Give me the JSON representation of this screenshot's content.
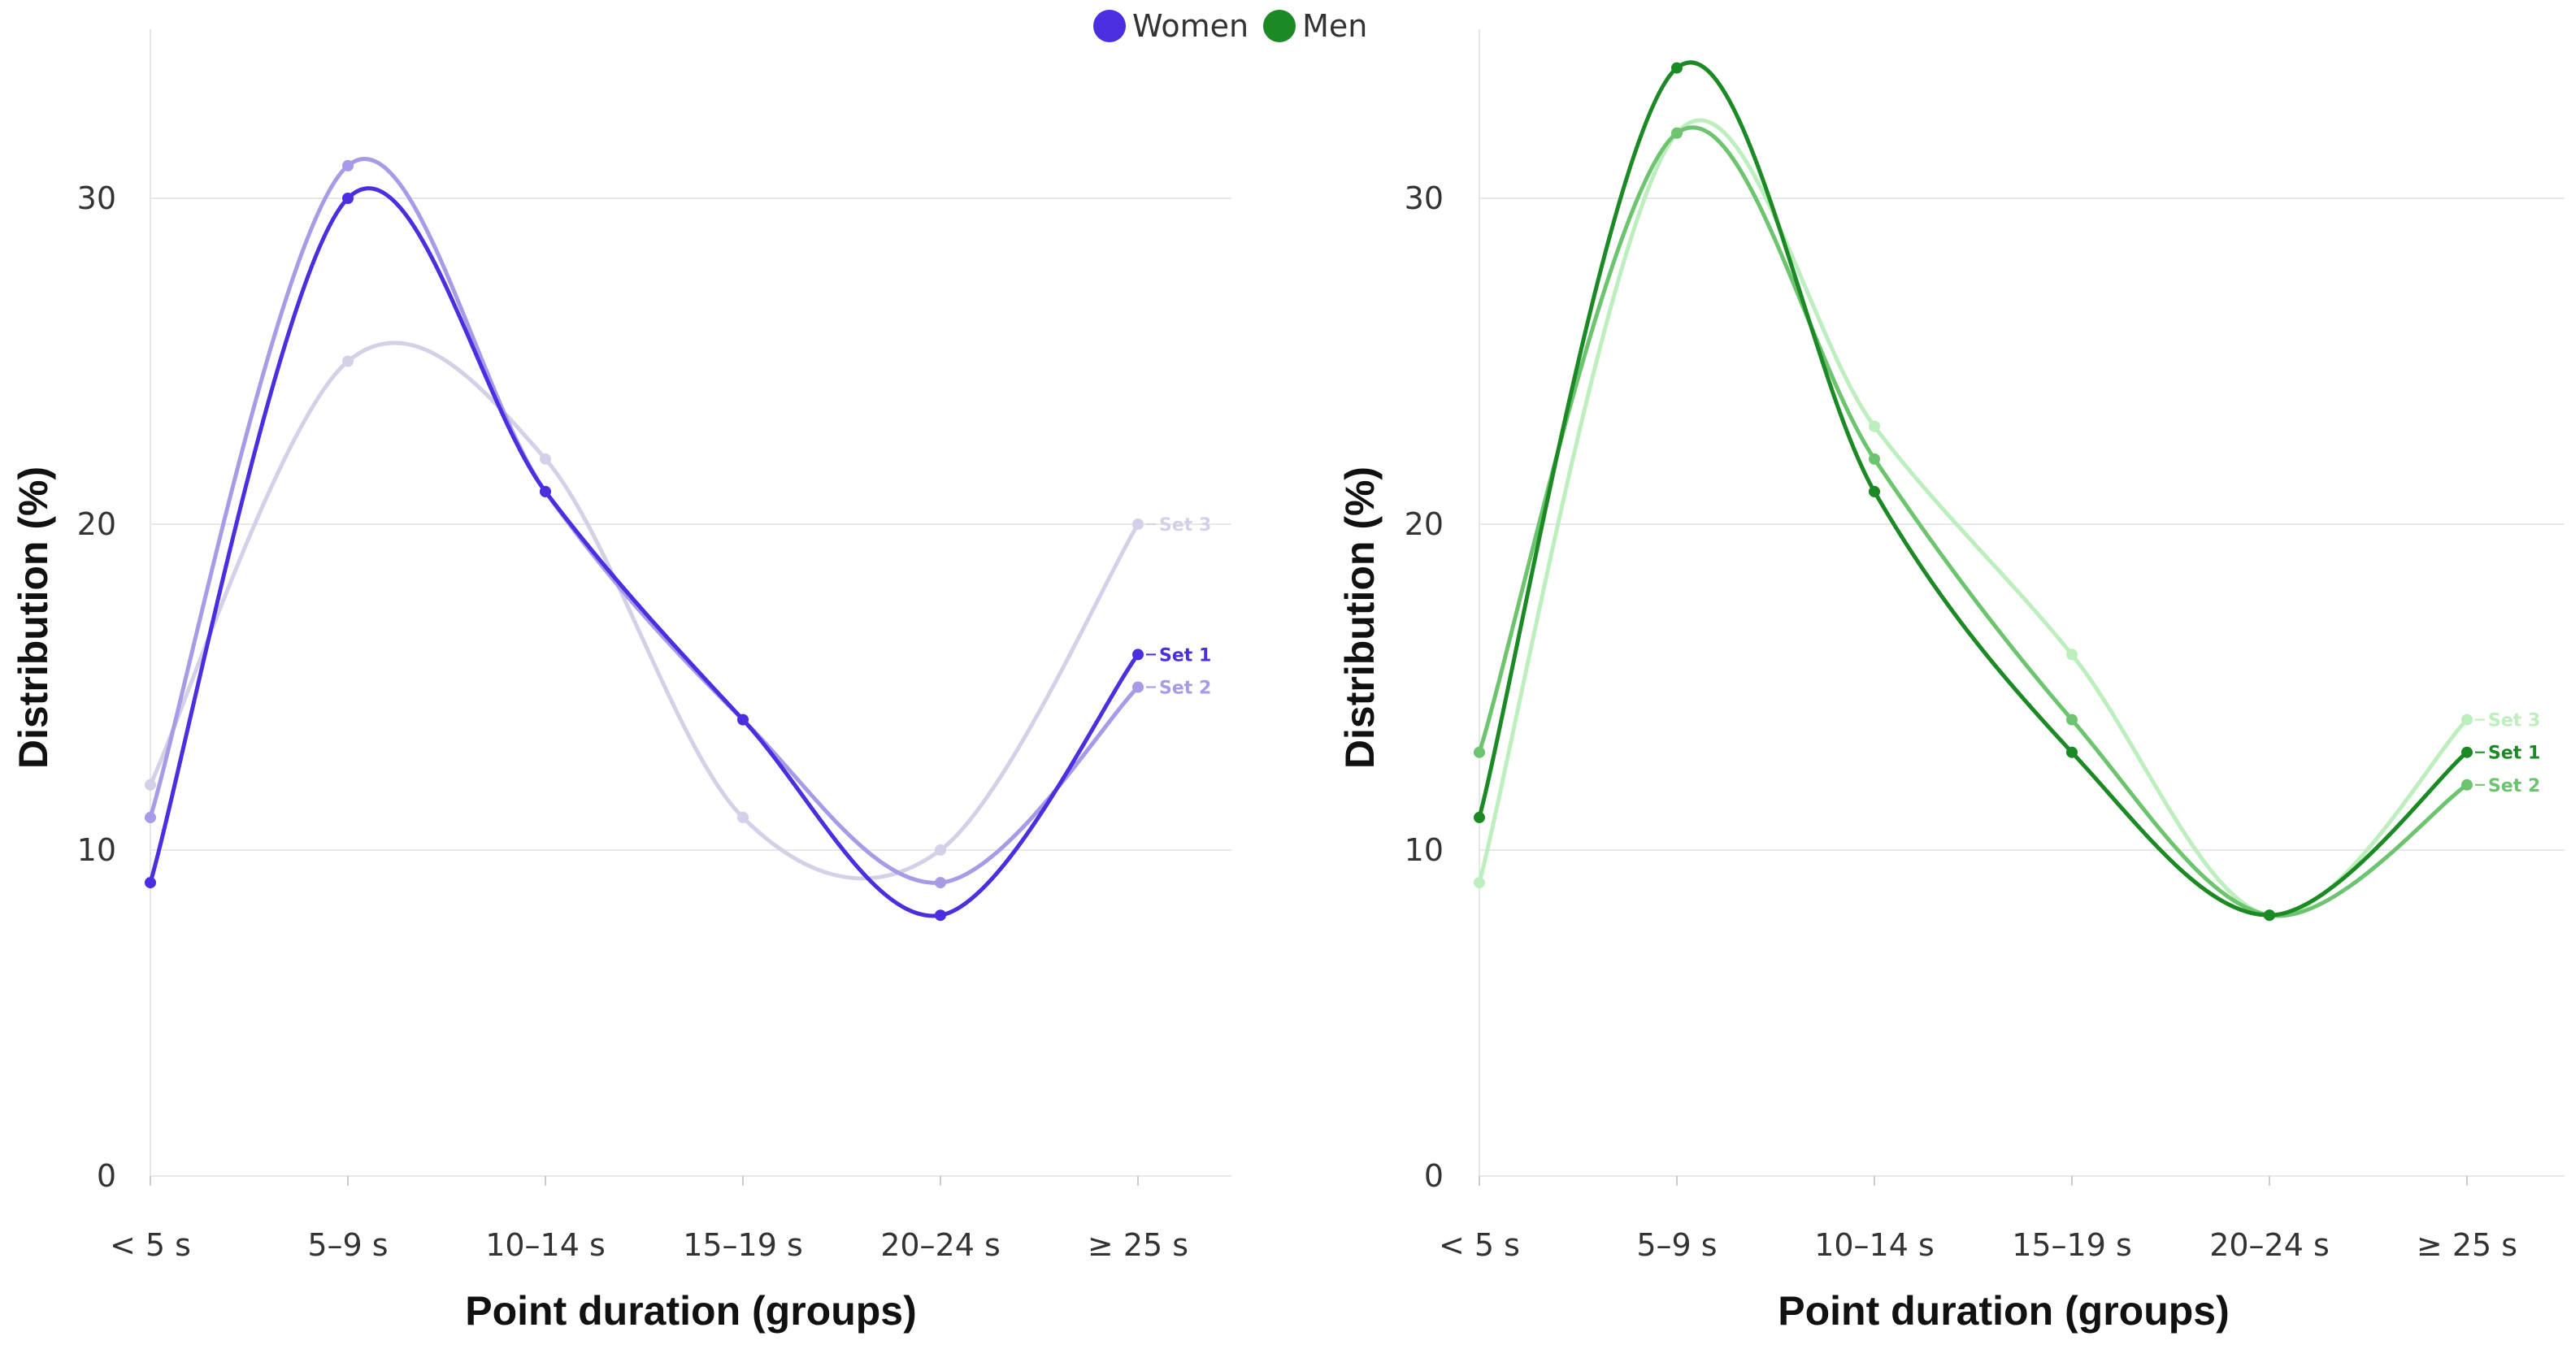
{
  "legend": [
    {
      "label": "Women",
      "color": "#4b2ee0"
    },
    {
      "label": "Men",
      "color": "#1b8a24"
    }
  ],
  "chart_data": [
    {
      "type": "line",
      "group": "Women",
      "categories": [
        "< 5 s",
        "5–9 s",
        "10–14 s",
        "15–19 s",
        "20–24 s",
        "≥ 25 s"
      ],
      "series": [
        {
          "name": "Set 1",
          "color": "#4b2ee0",
          "values": [
            9,
            30,
            21,
            14,
            8,
            16
          ]
        },
        {
          "name": "Set 2",
          "color": "#a89ae6",
          "values": [
            11,
            31,
            21,
            14,
            9,
            15
          ]
        },
        {
          "name": "Set 3",
          "color": "#d3d0e8",
          "values": [
            12,
            25,
            22,
            11,
            10,
            20
          ]
        }
      ],
      "yticks": [
        0,
        10,
        20,
        30
      ],
      "ylim": [
        0,
        35
      ],
      "xlabel": "Point duration (groups)",
      "ylabel": "Distribution (%)"
    },
    {
      "type": "line",
      "group": "Men",
      "categories": [
        "< 5 s",
        "5–9 s",
        "10–14 s",
        "15–19 s",
        "20–24 s",
        "≥ 25 s"
      ],
      "series": [
        {
          "name": "Set 1",
          "color": "#1b8a24",
          "values": [
            11,
            34,
            21,
            13,
            8,
            13
          ]
        },
        {
          "name": "Set 2",
          "color": "#6cc46e",
          "values": [
            13,
            32,
            22,
            14,
            8,
            12
          ]
        },
        {
          "name": "Set 3",
          "color": "#bdeebd",
          "values": [
            9,
            32,
            23,
            16,
            8,
            14
          ]
        }
      ],
      "yticks": [
        0,
        10,
        20,
        30
      ],
      "ylim": [
        0,
        35
      ],
      "xlabel": "Point duration (groups)",
      "ylabel": "Distribution (%)"
    }
  ]
}
